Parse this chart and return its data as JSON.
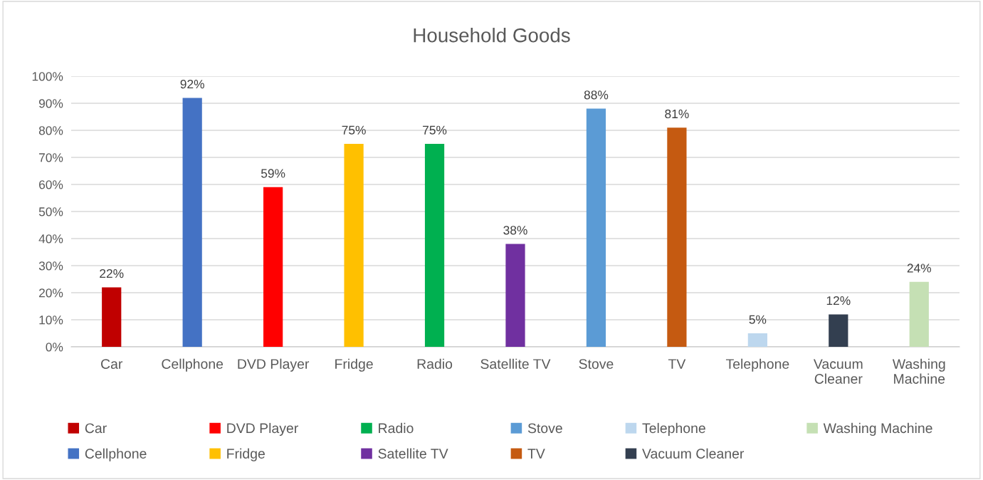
{
  "chart_data": {
    "type": "bar",
    "title": "Household Goods",
    "categories": [
      "Car",
      "Cellphone",
      "DVD Player",
      "Fridge",
      "Radio",
      "Satellite TV",
      "Stove",
      "TV",
      "Telephone",
      "Vacuum Cleaner",
      "Washing Machine"
    ],
    "series": [
      {
        "name": "Car",
        "color": "#c00000",
        "values": [
          22,
          null,
          null,
          null,
          null,
          null,
          null,
          null,
          null,
          null,
          null
        ],
        "value_labels": [
          "22%",
          null,
          null,
          null,
          null,
          null,
          null,
          null,
          null,
          null,
          null
        ]
      },
      {
        "name": "Cellphone",
        "color": "#4472c4",
        "values": [
          null,
          92,
          null,
          null,
          null,
          null,
          null,
          null,
          null,
          null,
          null
        ],
        "value_labels": [
          null,
          "92%",
          null,
          null,
          null,
          null,
          null,
          null,
          null,
          null,
          null
        ]
      },
      {
        "name": "DVD Player",
        "color": "#ff0000",
        "values": [
          null,
          null,
          59,
          null,
          null,
          null,
          null,
          null,
          null,
          null,
          null
        ],
        "value_labels": [
          null,
          null,
          "59%",
          null,
          null,
          null,
          null,
          null,
          null,
          null,
          null
        ]
      },
      {
        "name": "Fridge",
        "color": "#ffc000",
        "values": [
          null,
          null,
          null,
          75,
          null,
          null,
          null,
          null,
          null,
          null,
          null
        ],
        "value_labels": [
          null,
          null,
          null,
          "75%",
          null,
          null,
          null,
          null,
          null,
          null,
          null
        ]
      },
      {
        "name": "Radio",
        "color": "#00b050",
        "values": [
          null,
          null,
          null,
          null,
          75,
          null,
          null,
          null,
          null,
          null,
          null
        ],
        "value_labels": [
          null,
          null,
          null,
          null,
          "75%",
          null,
          null,
          null,
          null,
          null,
          null
        ]
      },
      {
        "name": "Satellite TV",
        "color": "#7030a0",
        "values": [
          null,
          null,
          null,
          null,
          null,
          38,
          null,
          null,
          null,
          null,
          null
        ],
        "value_labels": [
          null,
          null,
          null,
          null,
          null,
          "38%",
          null,
          null,
          null,
          null,
          null
        ]
      },
      {
        "name": "Stove",
        "color": "#5b9bd5",
        "values": [
          null,
          null,
          null,
          null,
          null,
          null,
          88,
          null,
          null,
          null,
          null
        ],
        "value_labels": [
          null,
          null,
          null,
          null,
          null,
          null,
          "88%",
          null,
          null,
          null,
          null
        ]
      },
      {
        "name": "TV",
        "color": "#c55a11",
        "values": [
          null,
          null,
          null,
          null,
          null,
          null,
          null,
          81,
          null,
          null,
          null
        ],
        "value_labels": [
          null,
          null,
          null,
          null,
          null,
          null,
          null,
          "81%",
          null,
          null,
          null
        ]
      },
      {
        "name": "Telephone",
        "color": "#bdd7ee",
        "values": [
          null,
          null,
          null,
          null,
          null,
          null,
          null,
          null,
          5,
          null,
          null
        ],
        "value_labels": [
          null,
          null,
          null,
          null,
          null,
          null,
          null,
          null,
          "5%",
          null,
          null
        ]
      },
      {
        "name": "Vacuum Cleaner",
        "color": "#333f50",
        "values": [
          null,
          null,
          null,
          null,
          null,
          null,
          null,
          null,
          null,
          12,
          null
        ],
        "value_labels": [
          null,
          null,
          null,
          null,
          null,
          null,
          null,
          null,
          null,
          "12%",
          null
        ]
      },
      {
        "name": "Washing Machine",
        "color": "#c5e0b4",
        "values": [
          null,
          null,
          null,
          null,
          null,
          null,
          null,
          null,
          null,
          null,
          24
        ],
        "value_labels": [
          null,
          null,
          null,
          null,
          null,
          null,
          null,
          null,
          null,
          null,
          "24%"
        ]
      }
    ],
    "ylim": [
      0,
      100
    ],
    "yticks": [
      {
        "value": 0,
        "label": "0%"
      },
      {
        "value": 10,
        "label": "10%"
      },
      {
        "value": 20,
        "label": "20%"
      },
      {
        "value": 30,
        "label": "30%"
      },
      {
        "value": 40,
        "label": "40%"
      },
      {
        "value": 50,
        "label": "50%"
      },
      {
        "value": 60,
        "label": "60%"
      },
      {
        "value": 70,
        "label": "70%"
      },
      {
        "value": 80,
        "label": "80%"
      },
      {
        "value": 90,
        "label": "90%"
      },
      {
        "value": 100,
        "label": "100%"
      }
    ],
    "grid": "y",
    "legend": "bottom"
  }
}
